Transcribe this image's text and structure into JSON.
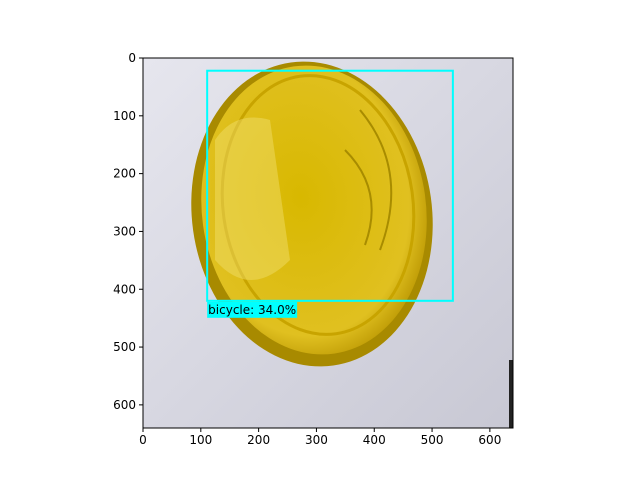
{
  "chart_data": {
    "type": "image",
    "xlim": [
      0,
      640
    ],
    "ylim": [
      640,
      0
    ],
    "xticks": [
      0,
      100,
      200,
      300,
      400,
      500,
      600
    ],
    "yticks": [
      0,
      100,
      200,
      300,
      400,
      500,
      600
    ],
    "boxes": [
      {
        "label": "bicycle: 34.0%",
        "x0": 111,
        "y0": 22,
        "x1": 536,
        "y1": 420,
        "color": "#00ffff"
      }
    ]
  }
}
